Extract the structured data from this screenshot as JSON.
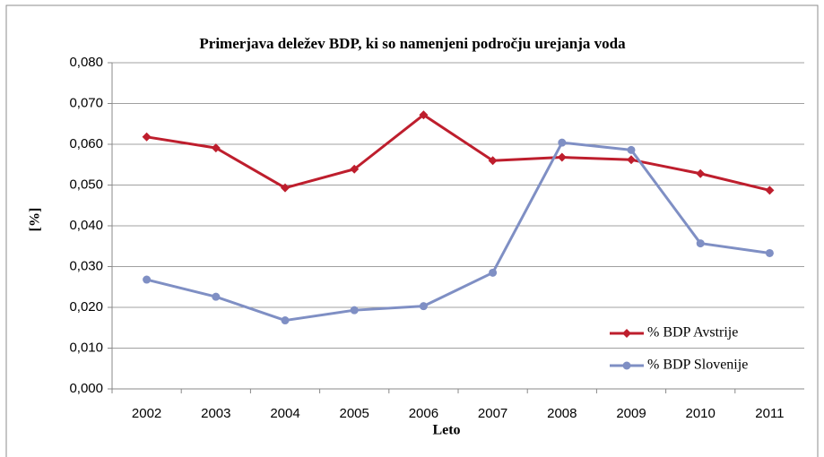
{
  "chart_data": {
    "type": "line",
    "title": "Primerjava deležev BDP, ki so namenjeni področju urejanja voda",
    "x_label": "Leto",
    "y_label": "[%]",
    "categories": [
      "2002",
      "2003",
      "2004",
      "2005",
      "2006",
      "2007",
      "2008",
      "2009",
      "2010",
      "2011"
    ],
    "series": [
      {
        "name": "% BDP Avstrije",
        "color": "#be1e2d",
        "marker": "diamond",
        "values": [
          0.0618,
          0.0591,
          0.0493,
          0.0539,
          0.0672,
          0.056,
          0.0568,
          0.0562,
          0.0528,
          0.0487
        ]
      },
      {
        "name": "% BDP Slovenije",
        "color": "#7f8fc4",
        "marker": "circle",
        "values": [
          0.0268,
          0.0226,
          0.0168,
          0.0193,
          0.0203,
          0.0285,
          0.0604,
          0.0586,
          0.0357,
          0.0333
        ]
      }
    ],
    "ylim": [
      0,
      0.08
    ],
    "yticks": [
      {
        "value": 0,
        "label": "0,000"
      },
      {
        "value": 0.01,
        "label": "0,010"
      },
      {
        "value": 0.02,
        "label": "0,020"
      },
      {
        "value": 0.03,
        "label": "0,030"
      },
      {
        "value": 0.04,
        "label": "0,040"
      },
      {
        "value": 0.05,
        "label": "0,050"
      },
      {
        "value": 0.06,
        "label": "0,060"
      },
      {
        "value": 0.07,
        "label": "0,070"
      },
      {
        "value": 0.08,
        "label": "0,080"
      }
    ],
    "grid": true,
    "legend": "lower right"
  }
}
